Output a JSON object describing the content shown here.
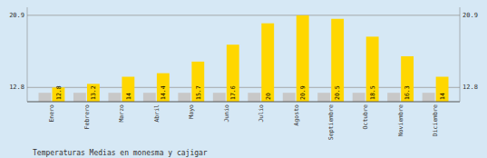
{
  "chart_data": {
    "type": "bar",
    "title": "Temperaturas Medias en monesma y cajigar",
    "categories": [
      "Enero",
      "Febrero",
      "Marzo",
      "Abril",
      "Mayo",
      "Junio",
      "Julio",
      "Agosto",
      "Septiembre",
      "Octubre",
      "Noviembre",
      "Diciembre"
    ],
    "series": [
      {
        "color": "#C8C8C8",
        "values": [
          12.2,
          12.2,
          12.2,
          12.2,
          12.2,
          12.2,
          12.2,
          12.2,
          12.2,
          12.2,
          12.2,
          12.2
        ]
      },
      {
        "color": "#FFD700",
        "data_labels": true,
        "values": [
          12.8,
          13.2,
          14.0,
          14.4,
          15.7,
          17.6,
          20.0,
          20.9,
          20.5,
          18.5,
          16.3,
          14.0
        ]
      }
    ],
    "ylim": [
      11.2,
      21.8
    ],
    "yticks": [
      12.8,
      20.9
    ],
    "y2lim": [
      11.2,
      21.8
    ],
    "y2ticks": [
      12.8,
      20.9
    ],
    "grid": true
  }
}
